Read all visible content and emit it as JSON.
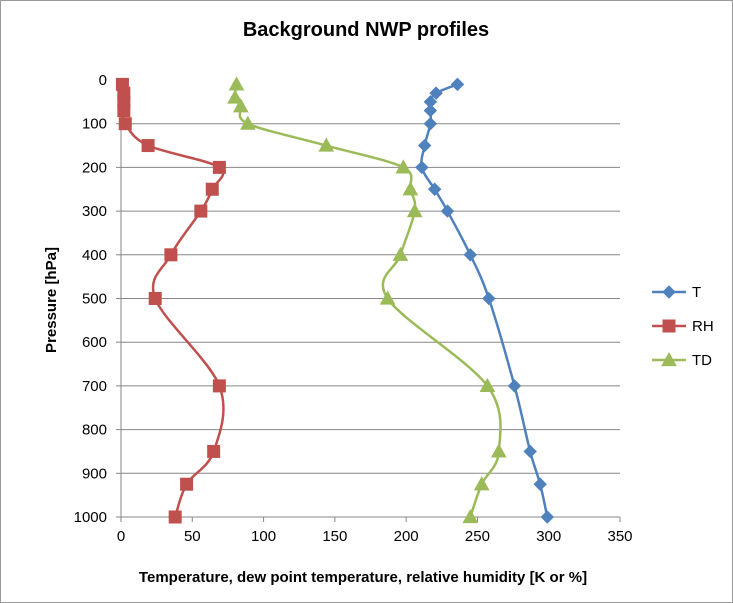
{
  "chart_data": {
    "type": "line",
    "title": "Background NWP profiles",
    "xlabel": "Temperature, dew point temperature, relative humidity  [K or %]",
    "ylabel": "Pressure [hPa]",
    "xlim": [
      0,
      350
    ],
    "ylim": [
      0,
      1000
    ],
    "y_inverted": true,
    "grid": "horizontal",
    "x_ticks": [
      0,
      50,
      100,
      150,
      200,
      250,
      300,
      350
    ],
    "y_ticks": [
      0,
      100,
      200,
      300,
      400,
      500,
      600,
      700,
      800,
      900,
      1000
    ],
    "legend_position": "right",
    "series": [
      {
        "name": "T",
        "color": "#4F81BD",
        "marker": "diamond",
        "points": [
          [
            236,
            10
          ],
          [
            221,
            30
          ],
          [
            217,
            50
          ],
          [
            217,
            70
          ],
          [
            217,
            100
          ],
          [
            213,
            150
          ],
          [
            211,
            200
          ],
          [
            220,
            250
          ],
          [
            229,
            300
          ],
          [
            245,
            400
          ],
          [
            258,
            500
          ],
          [
            276,
            700
          ],
          [
            287,
            850
          ],
          [
            294,
            925
          ],
          [
            299,
            1000
          ]
        ]
      },
      {
        "name": "RH",
        "color": "#C0504D",
        "marker": "square",
        "points": [
          [
            1,
            10
          ],
          [
            2,
            30
          ],
          [
            2,
            50
          ],
          [
            2,
            70
          ],
          [
            3,
            100
          ],
          [
            19,
            150
          ],
          [
            69,
            200
          ],
          [
            64,
            250
          ],
          [
            56,
            300
          ],
          [
            35,
            400
          ],
          [
            24,
            500
          ],
          [
            69,
            700
          ],
          [
            65,
            850
          ],
          [
            46,
            925
          ],
          [
            38,
            1000
          ]
        ]
      },
      {
        "name": "TD",
        "color": "#9BBB59",
        "marker": "triangle",
        "points": [
          [
            81,
            10
          ],
          [
            80,
            40
          ],
          [
            84,
            60
          ],
          [
            89,
            100
          ],
          [
            144,
            150
          ],
          [
            198,
            200
          ],
          [
            203,
            250
          ],
          [
            206,
            300
          ],
          [
            196,
            400
          ],
          [
            187,
            500
          ],
          [
            257,
            700
          ],
          [
            265,
            850
          ],
          [
            253,
            925
          ],
          [
            245,
            1000
          ]
        ]
      }
    ]
  }
}
